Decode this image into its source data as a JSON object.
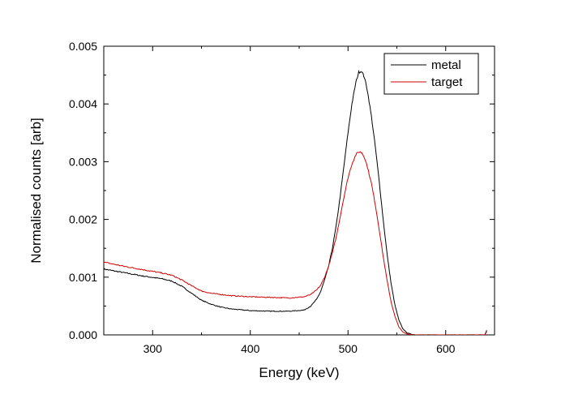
{
  "chart_data": {
    "type": "line",
    "title": "",
    "xlabel": "Energy (keV)",
    "ylabel": "Normalised counts [arb]",
    "xlim": [
      250,
      650
    ],
    "ylim": [
      0.0,
      0.005
    ],
    "x_ticks": [
      300,
      400,
      500,
      600
    ],
    "x_tick_labels": [
      "300",
      "400",
      "500",
      "600"
    ],
    "y_ticks": [
      0.0,
      0.001,
      0.002,
      0.003,
      0.004,
      0.005
    ],
    "y_tick_labels": [
      "0.000",
      "0.001",
      "0.002",
      "0.003",
      "0.004",
      "0.005"
    ],
    "grid": false,
    "legend_position": "top-right",
    "series": [
      {
        "name": "metal",
        "color": "#000000",
        "x": [
          250,
          270,
          290,
          310,
          320,
          330,
          340,
          350,
          360,
          370,
          380,
          400,
          420,
          440,
          455,
          462,
          468,
          472,
          476,
          480,
          484,
          488,
          492,
          496,
          500,
          504,
          508,
          511,
          514,
          517,
          520,
          524,
          528,
          532,
          536,
          540,
          544,
          548,
          552,
          556,
          560,
          565,
          570,
          580,
          600,
          620,
          640,
          642
        ],
        "y": [
          0.00114,
          0.00108,
          0.00102,
          0.00097,
          0.00093,
          0.00084,
          0.00072,
          0.0006,
          0.00053,
          0.00048,
          0.00045,
          0.00042,
          0.00041,
          0.00041,
          0.00043,
          0.0005,
          0.00062,
          0.00075,
          0.00095,
          0.00118,
          0.0015,
          0.0019,
          0.0024,
          0.00295,
          0.0035,
          0.004,
          0.00437,
          0.00455,
          0.00457,
          0.00445,
          0.00422,
          0.00378,
          0.00325,
          0.00265,
          0.002,
          0.0014,
          0.0009,
          0.00052,
          0.00026,
          0.00011,
          4e-05,
          1e-05,
          0.0,
          0.0,
          0.0,
          0.0,
          0.0,
          8e-05
        ]
      },
      {
        "name": "target",
        "color": "#d00000",
        "x": [
          250,
          270,
          290,
          310,
          320,
          330,
          340,
          350,
          360,
          370,
          380,
          400,
          420,
          440,
          455,
          462,
          468,
          472,
          476,
          480,
          484,
          488,
          492,
          496,
          500,
          504,
          508,
          511,
          514,
          517,
          520,
          524,
          528,
          532,
          536,
          540,
          544,
          548,
          552,
          556,
          560,
          565,
          570,
          580,
          600,
          620,
          640,
          642
        ],
        "y": [
          0.00126,
          0.00119,
          0.00113,
          0.00107,
          0.00103,
          0.00095,
          0.00085,
          0.00076,
          0.00072,
          0.0007,
          0.00068,
          0.00066,
          0.00065,
          0.00064,
          0.00066,
          0.0007,
          0.00078,
          0.00086,
          0.001,
          0.00118,
          0.00142,
          0.0017,
          0.00205,
          0.0024,
          0.00272,
          0.00296,
          0.00312,
          0.00317,
          0.00316,
          0.00307,
          0.0029,
          0.00262,
          0.00225,
          0.00182,
          0.00136,
          0.00094,
          0.00058,
          0.00032,
          0.00014,
          5e-05,
          2e-05,
          0.0,
          0.0,
          0.0,
          0.0,
          0.0,
          0.0,
          6e-05
        ]
      }
    ]
  }
}
